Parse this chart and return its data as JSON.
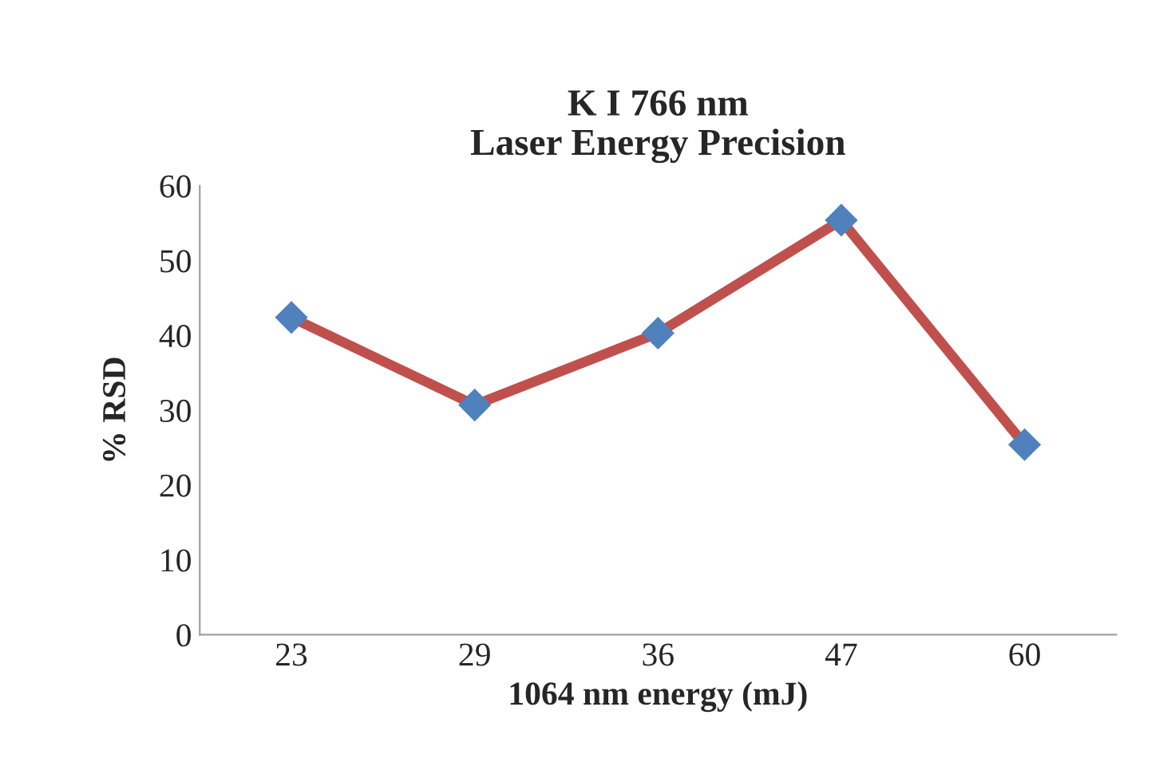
{
  "chart_data": {
    "type": "line",
    "title": "K I 766 nm\nLaser Energy Precision",
    "xlabel": "1064 nm energy (mJ)",
    "ylabel": "% RSD",
    "categories": [
      "23",
      "29",
      "36",
      "47",
      "60"
    ],
    "series": [
      {
        "color": "#c0504d",
        "colors": [
          "#4f81bd",
          "#4f81bd",
          "#4f81bd",
          "#4f81bd",
          "#4f81bd"
        ],
        "values": [
          42.4,
          30.7,
          40.3,
          55.4,
          25.4
        ]
      }
    ],
    "ylim": [
      0,
      60
    ],
    "yticks": [
      0,
      10,
      20,
      30,
      40,
      50,
      60
    ],
    "marker": "diamond",
    "line_style": "solid",
    "grid": false,
    "legend": false
  }
}
